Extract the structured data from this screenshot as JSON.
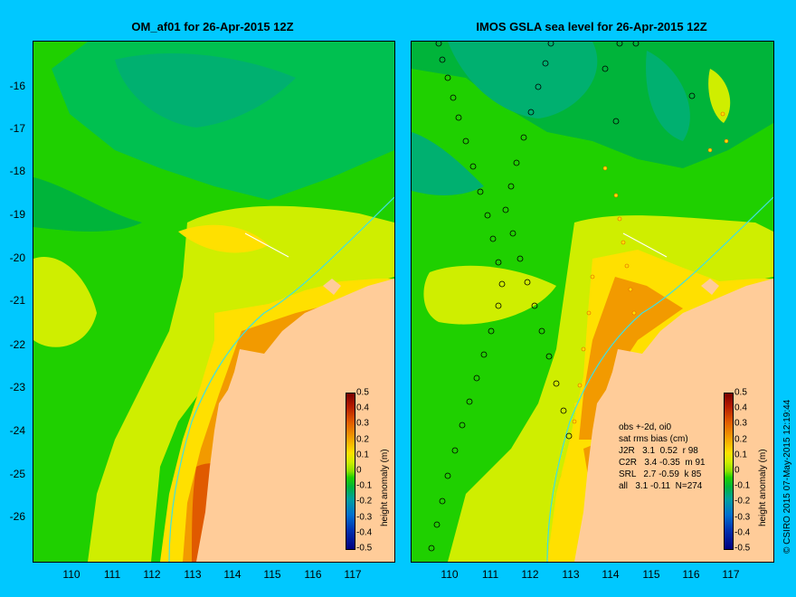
{
  "titles": {
    "left": "OM_af01 for 26-Apr-2015 12Z",
    "right": "IMOS GSLA sea level  for 26-Apr-2015 12Z"
  },
  "axes": {
    "lat_labels": [
      "-16",
      "-17",
      "-18",
      "-19",
      "-20",
      "-21",
      "-22",
      "-23",
      "-24",
      "-25",
      "-26"
    ],
    "lon_labels": [
      "110",
      "111",
      "112",
      "113",
      "114",
      "115",
      "116",
      "117"
    ]
  },
  "colorbar": {
    "ticks": [
      "0.5",
      "0.4",
      "0.3",
      "0.2",
      "0.1",
      "0",
      "-0.1",
      "-0.2",
      "-0.3",
      "-0.4",
      "-0.5"
    ],
    "label": "height anomaly (m)"
  },
  "stats": {
    "line1": "obs +-2d, oi0",
    "line2": "sat rms bias (cm)",
    "line3": "J2R   3.1  0.52  r 98",
    "line4": "C2R   3.4 -0.35  m 91",
    "line5": "SRL   2.7 -0.59  k 85",
    "line6": "all   3.1 -0.11  N=274"
  },
  "copyright": "© CSIRO 2015   07-May-2015 12:19:44",
  "colors": {
    "background": "#00c8ff",
    "land": "#ffcc99",
    "coastline_contour": "#40e0e0"
  }
}
